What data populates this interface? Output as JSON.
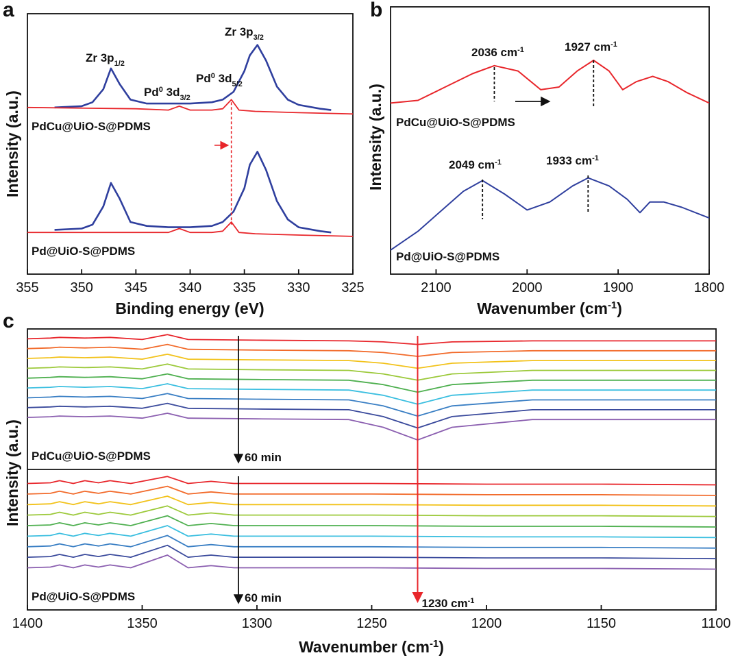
{
  "chart_data": [
    {
      "type": "line",
      "panel_label": "a",
      "xlabel": [
        {
          "t": "Binding energy (eV)"
        }
      ],
      "ylabel": "Intensity (a.u.)",
      "xlim": [
        355,
        325
      ],
      "xticks": [
        355,
        350,
        345,
        340,
        335,
        330,
        325
      ],
      "ylim": [
        0,
        100
      ],
      "series": [
        {
          "color": "#2f3f9e",
          "x": [
            352.5,
            350,
            349,
            348,
            347.3,
            346.5,
            345.5,
            344,
            342,
            340,
            338,
            337,
            336,
            335,
            334.5,
            333.8,
            333,
            332,
            331,
            330,
            328,
            327
          ],
          "values": [
            64,
            64.5,
            66,
            71,
            79,
            73,
            67,
            65.5,
            65.5,
            65.5,
            66,
            67,
            70,
            78,
            84,
            88,
            82,
            72,
            67,
            65,
            63.5,
            63
          ]
        },
        {
          "color": "#e8262b",
          "x": [
            355,
            345,
            342,
            341,
            340,
            338,
            337,
            336.2,
            335.5,
            334,
            330,
            325
          ],
          "values": [
            64,
            63.5,
            63,
            64.5,
            63,
            63,
            63.5,
            67,
            63,
            62.5,
            62,
            61.5
          ]
        },
        {
          "color": "#2f3f9e",
          "x": [
            352.5,
            350,
            349,
            348,
            347.3,
            346.5,
            345.5,
            344,
            342,
            340,
            338,
            337,
            336,
            335,
            334.5,
            333.8,
            333,
            332,
            331,
            330,
            328,
            327
          ],
          "values": [
            17,
            17.5,
            19,
            26,
            35,
            29,
            20,
            18.5,
            18,
            18,
            18.5,
            20,
            24,
            33,
            42,
            47,
            40,
            28,
            21,
            18,
            16.5,
            16
          ]
        },
        {
          "color": "#e8262b",
          "x": [
            355,
            345,
            342,
            341,
            340,
            338,
            337,
            336.2,
            335.5,
            334,
            330,
            325
          ],
          "values": [
            16,
            16,
            16,
            17.5,
            16,
            16,
            16.5,
            20,
            16,
            15.5,
            15,
            14.5
          ]
        }
      ],
      "marker_x": 336.2,
      "marker_color": "#e8262b",
      "annotations": [
        {
          "color": "#e8262b",
          "parts": [
            {
              "t": "Zr 3p"
            },
            {
              "sub": "1/2"
            }
          ]
        },
        {
          "color": "#e8262b",
          "parts": [
            {
              "t": "Zr 3p"
            },
            {
              "sub": "3/2"
            }
          ]
        },
        {
          "color": "#e8262b",
          "parts": [
            {
              "t": "Pd"
            },
            {
              "sup": "0"
            },
            {
              "t": " 3d"
            },
            {
              "sub": "3/2"
            }
          ]
        },
        {
          "color": "#e8262b",
          "parts": [
            {
              "t": "Pd"
            },
            {
              "sup": "0"
            },
            {
              "t": " 3d"
            },
            {
              "sub": "5/2"
            }
          ]
        },
        {
          "color": "#e8262b",
          "parts": [
            {
              "t": "PdCu@UiO-S@PDMS"
            }
          ]
        },
        {
          "color": "#2f3f9e",
          "parts": [
            {
              "t": "Pd@UiO-S@PDMS"
            }
          ]
        }
      ]
    },
    {
      "type": "line",
      "panel_label": "b",
      "xlabel": [
        {
          "t": "Wavenumber (cm"
        },
        {
          "sup": "-1"
        },
        {
          "t": ")"
        }
      ],
      "ylabel": "Intensity (a.u.)",
      "xlim": [
        2150,
        1800
      ],
      "xticks": [
        2100,
        2000,
        1900,
        1800
      ],
      "ylim": [
        0,
        100
      ],
      "series": [
        {
          "color": "#e8262b",
          "x": [
            2150,
            2120,
            2090,
            2060,
            2036,
            2010,
            1985,
            1965,
            1945,
            1927,
            1910,
            1895,
            1880,
            1862,
            1845,
            1825,
            1800
          ],
          "values": [
            64,
            65,
            70,
            75,
            78,
            76,
            69,
            70,
            76,
            80,
            76,
            69,
            72,
            74,
            72,
            68,
            64
          ]
        },
        {
          "color": "#2f3f9e",
          "x": [
            2150,
            2120,
            2090,
            2070,
            2049,
            2025,
            2000,
            1975,
            1950,
            1933,
            1910,
            1890,
            1876,
            1865,
            1850,
            1830,
            1800
          ],
          "values": [
            9,
            16,
            25,
            31,
            35,
            30,
            24,
            27,
            33,
            36,
            33,
            28,
            23,
            27,
            27,
            25,
            21
          ]
        }
      ],
      "markers": [
        2036,
        1927,
        2049,
        1933
      ],
      "annotations": [
        {
          "color": "#e8262b",
          "parts": [
            {
              "t": "2036 cm"
            },
            {
              "sup": "-1"
            }
          ]
        },
        {
          "color": "#e8262b",
          "parts": [
            {
              "t": "1927 cm"
            },
            {
              "sup": "-1"
            }
          ]
        },
        {
          "color": "#e8262b",
          "parts": [
            {
              "t": "PdCu@UiO-S@PDMS"
            }
          ]
        },
        {
          "color": "#2f3f9e",
          "parts": [
            {
              "t": "2049 cm"
            },
            {
              "sup": "-1"
            }
          ]
        },
        {
          "color": "#2f3f9e",
          "parts": [
            {
              "t": "1933 cm"
            },
            {
              "sup": "-1"
            }
          ]
        },
        {
          "color": "#2f3f9e",
          "parts": [
            {
              "t": "Pd@UiO-S@PDMS"
            }
          ]
        }
      ]
    },
    {
      "type": "line",
      "panel_label": "c",
      "xlabel": [
        {
          "t": "Wavenumber (cm"
        },
        {
          "sup": "-1"
        },
        {
          "t": ")"
        }
      ],
      "ylabel": "Intensity (a.u.)",
      "xlim": [
        1400,
        1100
      ],
      "xticks": [
        1400,
        1350,
        1300,
        1250,
        1200,
        1150,
        1100
      ],
      "ylim": [
        0,
        100
      ],
      "marker": {
        "x": 1230,
        "color": "#e8262b",
        "label": [
          {
            "t": "1230 cm"
          },
          {
            "sup": "-1"
          }
        ]
      },
      "groups": [
        {
          "label": "PdCu@UiO-S@PDMS",
          "label_color": "#e8262b",
          "annotation": "60 min",
          "x": [
            1400,
            1390,
            1386,
            1375,
            1364,
            1350,
            1339,
            1330,
            1300,
            1260,
            1245,
            1230,
            1215,
            1180,
            1140,
            1100
          ],
          "series": [
            {
              "color": "#e8262b",
              "values": [
                93,
                93.5,
                94,
                93.5,
                94,
                92.5,
                96,
                92.5,
                92,
                91.5,
                90.8,
                89,
                90.8,
                91.5,
                91.5,
                91.5
              ]
            },
            {
              "color": "#f26a2a",
              "values": [
                86,
                86.5,
                87,
                86.5,
                87,
                85.5,
                89,
                85.5,
                85,
                84.5,
                83.2,
                80.5,
                83.2,
                84.5,
                84.5,
                84.5
              ]
            },
            {
              "color": "#f2c21a",
              "values": [
                79,
                79.5,
                80,
                79.5,
                80,
                78.5,
                82,
                78.5,
                78,
                77.5,
                75.6,
                72,
                75.6,
                77.5,
                77.5,
                77.5
              ]
            },
            {
              "color": "#9cc93a",
              "values": [
                72,
                72.5,
                73,
                72.5,
                73,
                71.5,
                75,
                71.5,
                71,
                70.5,
                68,
                63.5,
                68,
                70.5,
                70.5,
                70.5
              ]
            },
            {
              "color": "#4fb050",
              "values": [
                65,
                65.5,
                66,
                65.5,
                66,
                64.5,
                68,
                64.5,
                64,
                63.5,
                60.4,
                55,
                60.4,
                63.5,
                63.5,
                63.5
              ]
            },
            {
              "color": "#3cbfe0",
              "values": [
                58,
                58.5,
                59,
                58.5,
                59,
                57.5,
                61,
                57.5,
                57,
                56.5,
                52.8,
                46.5,
                52.8,
                56.5,
                56.5,
                56.5
              ]
            },
            {
              "color": "#3a7fc4",
              "values": [
                51,
                51.5,
                52,
                51.5,
                52,
                50.5,
                54,
                50.5,
                50,
                49.5,
                45.2,
                38,
                45.2,
                49.5,
                49.5,
                49.5
              ]
            },
            {
              "color": "#3a4a9c",
              "values": [
                44,
                44.5,
                45,
                44.5,
                45,
                43.5,
                47,
                43.5,
                43,
                42.5,
                37.6,
                29.5,
                37.6,
                42.5,
                42.5,
                42.5
              ]
            },
            {
              "color": "#8b5fb0",
              "values": [
                37,
                37.5,
                38,
                37.5,
                38,
                36.5,
                40,
                36.5,
                36,
                35.5,
                30,
                21,
                30,
                35.5,
                35.5,
                35.5
              ]
            }
          ]
        },
        {
          "label": "Pd@UiO-S@PDMS",
          "label_color": "#222222",
          "annotation": "60 min",
          "x": [
            1400,
            1390,
            1386,
            1380,
            1375,
            1369,
            1364,
            1355,
            1339,
            1330,
            1320,
            1310,
            1280,
            1250,
            1200,
            1150,
            1100
          ],
          "series": [
            {
              "color": "#e8262b",
              "values": [
                90,
                90.5,
                92,
                90,
                92,
                90.5,
                92,
                90,
                95,
                90,
                91.5,
                90,
                90,
                90,
                89.5,
                89.5,
                89
              ]
            },
            {
              "color": "#f26a2a",
              "values": [
                82.5,
                83,
                84.5,
                82.5,
                84.5,
                83,
                84.5,
                82.5,
                88,
                82.5,
                84,
                82.5,
                82.5,
                82.5,
                82,
                82,
                81.5
              ]
            },
            {
              "color": "#f2c21a",
              "values": [
                75,
                75.5,
                77,
                75,
                77,
                75.5,
                77,
                75,
                81,
                75,
                76.5,
                75,
                75,
                75,
                74.5,
                74.5,
                74
              ]
            },
            {
              "color": "#9cc93a",
              "values": [
                67.5,
                68,
                69.5,
                67.5,
                69.5,
                68,
                69.5,
                67.5,
                74,
                67.5,
                69,
                67.5,
                67.5,
                67.5,
                67,
                67,
                66.5
              ]
            },
            {
              "color": "#4fb050",
              "values": [
                60,
                60.5,
                62,
                60,
                62,
                60.5,
                62,
                60,
                67,
                60,
                61.5,
                60,
                60,
                60,
                59.5,
                59.5,
                59
              ]
            },
            {
              "color": "#3cbfe0",
              "values": [
                52.5,
                53,
                54.5,
                52.5,
                54.5,
                53,
                54.5,
                52.5,
                60,
                52.5,
                54,
                52.5,
                52.5,
                52.5,
                52,
                52,
                51.5
              ]
            },
            {
              "color": "#3a7fc4",
              "values": [
                45,
                45.5,
                47,
                45,
                47,
                45.5,
                47,
                45,
                53,
                45,
                46.5,
                45,
                45,
                45,
                44.5,
                44.5,
                44
              ]
            },
            {
              "color": "#3a4a9c",
              "values": [
                37.5,
                38,
                39.5,
                37.5,
                39.5,
                38,
                39.5,
                37.5,
                46,
                37.5,
                39,
                37.5,
                37.5,
                37.5,
                37,
                37,
                36.5
              ]
            },
            {
              "color": "#8b5fb0",
              "values": [
                30,
                30.5,
                32,
                30,
                32,
                30.5,
                32,
                30,
                39,
                30,
                31.5,
                30,
                30,
                30,
                29.5,
                29.5,
                29
              ]
            }
          ]
        }
      ]
    }
  ]
}
